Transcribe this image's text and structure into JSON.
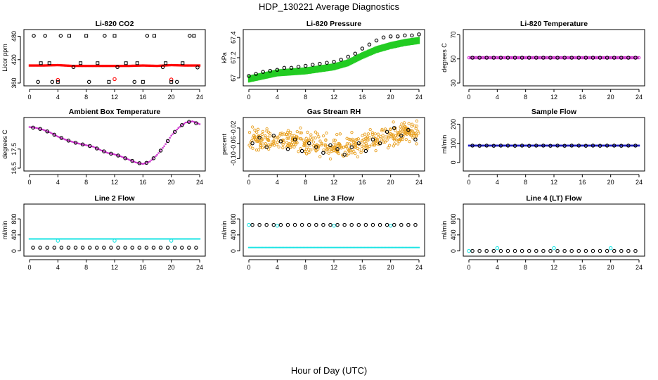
{
  "page": {
    "title": "HDP_130221  Average Diagnostics",
    "xlabel": "Hour of Day (UTC)"
  },
  "chart_data": [
    {
      "id": "co2",
      "type": "scatter",
      "title": "Li-820 CO2",
      "ylabel": "Licor ppm",
      "xlim": [
        0,
        24
      ],
      "ylim": [
        360,
        490
      ],
      "xticks": [
        0,
        4,
        8,
        12,
        16,
        20,
        24
      ],
      "yticks": [
        360,
        420,
        480
      ],
      "series": [
        {
          "kind": "band",
          "color": "#ff0000",
          "x": [
            0,
            2,
            4,
            6,
            8,
            10,
            12,
            14,
            16,
            18,
            20,
            22,
            24
          ],
          "y": [
            405,
            405,
            406,
            404,
            404,
            404,
            404,
            404,
            405,
            404,
            406,
            405,
            405
          ],
          "half_width": 3
        },
        {
          "kind": "points",
          "color": "#ff0000",
          "marker": "circle",
          "x": [
            4,
            12,
            20
          ],
          "y": [
            368,
            370,
            369
          ]
        },
        {
          "kind": "points",
          "color": "#000000",
          "marker": "circle",
          "x": [
            0.6,
            1.2,
            2.2,
            3.2,
            4.4,
            6.2,
            8.4,
            10.6,
            12.4,
            14.8,
            16.6,
            18.8,
            20.8,
            22.6,
            23.7
          ],
          "y": [
            481,
            363,
            481,
            363,
            481,
            401,
            363,
            481,
            401,
            363,
            481,
            401,
            363,
            481,
            400
          ]
        },
        {
          "kind": "points",
          "color": "#000000",
          "marker": "square",
          "x": [
            1.6,
            2.8,
            4.0,
            5.6,
            7.2,
            8.0,
            9.6,
            11.2,
            12.0,
            13.6,
            15.2,
            16.0,
            17.6,
            19.2,
            20.0,
            21.6,
            23.2
          ],
          "y": [
            411,
            411,
            363,
            481,
            411,
            481,
            411,
            363,
            481,
            411,
            411,
            363,
            481,
            411,
            363,
            411,
            481
          ]
        }
      ]
    },
    {
      "id": "pressure",
      "type": "scatter",
      "title": "Li-820 Pressure",
      "ylabel": "kPa",
      "xlim": [
        0,
        24
      ],
      "ylim": [
        66.95,
        67.45
      ],
      "xticks": [
        0,
        4,
        8,
        12,
        16,
        20,
        24
      ],
      "yticks": [
        67.0,
        67.2,
        67.4
      ],
      "series": [
        {
          "kind": "band",
          "color": "#22cc22",
          "x": [
            0,
            2,
            4,
            6,
            8,
            10,
            12,
            14,
            16,
            18,
            20,
            22,
            24
          ],
          "y": [
            66.99,
            67.02,
            67.05,
            67.06,
            67.07,
            67.09,
            67.11,
            67.15,
            67.22,
            67.28,
            67.32,
            67.35,
            67.37
          ],
          "half_width": 0.035
        },
        {
          "kind": "points",
          "color": "#000000",
          "marker": "circle",
          "x": [
            0,
            1,
            2,
            3,
            4,
            5,
            6,
            7,
            8,
            9,
            10,
            11,
            12,
            13,
            14,
            15,
            16,
            17,
            18,
            19,
            20,
            21,
            22,
            23,
            24
          ],
          "y": [
            67.02,
            67.04,
            67.06,
            67.07,
            67.08,
            67.1,
            67.1,
            67.11,
            67.12,
            67.13,
            67.14,
            67.15,
            67.16,
            67.18,
            67.21,
            67.24,
            67.29,
            67.33,
            67.37,
            67.4,
            67.41,
            67.41,
            67.42,
            67.42,
            67.43
          ]
        }
      ]
    },
    {
      "id": "licortemp",
      "type": "scatter",
      "title": "Li-820 Temperature",
      "ylabel": "degrees C",
      "xlim": [
        0,
        24
      ],
      "ylim": [
        30,
        72
      ],
      "xticks": [
        0,
        4,
        8,
        12,
        16,
        20,
        24
      ],
      "yticks": [
        30,
        50,
        70
      ],
      "series": [
        {
          "kind": "line",
          "color": "#cc33cc",
          "x": [
            0,
            24
          ],
          "y": [
            51,
            51
          ]
        },
        {
          "kind": "points",
          "color": "#000000",
          "marker": "circle",
          "x": [
            0.5,
            1.5,
            2.5,
            3.5,
            4.5,
            5.5,
            6.5,
            7.5,
            8.5,
            9.5,
            10.5,
            11.5,
            12.5,
            13.5,
            14.5,
            15.5,
            16.5,
            17.5,
            18.5,
            19.5,
            20.5,
            21.5,
            22.5,
            23.5
          ],
          "y": [
            51,
            51,
            51,
            51,
            51,
            51,
            51,
            51,
            51,
            51,
            51,
            51,
            51,
            51,
            51,
            51,
            51,
            51,
            51,
            51,
            51,
            51,
            51,
            51
          ]
        }
      ]
    },
    {
      "id": "boxtemp",
      "type": "scatter",
      "title": "Ambient Box Temperature",
      "ylabel": "degrees C",
      "xlim": [
        0,
        24
      ],
      "ylim": [
        16.5,
        19.0
      ],
      "xticks": [
        0,
        4,
        8,
        12,
        16,
        20,
        24
      ],
      "yticks": [
        16.5,
        17.5
      ],
      "series": [
        {
          "kind": "band",
          "color": "#cc33cc",
          "x": [
            0,
            1,
            2,
            3,
            4,
            5,
            6,
            7,
            8,
            9,
            10,
            11,
            12,
            13,
            14,
            15,
            16,
            17,
            18,
            19,
            20,
            21,
            22,
            23,
            24
          ],
          "y": [
            18.65,
            18.6,
            18.5,
            18.35,
            18.15,
            18.0,
            17.88,
            17.78,
            17.7,
            17.62,
            17.45,
            17.3,
            17.22,
            17.1,
            16.95,
            16.8,
            16.72,
            16.85,
            17.2,
            17.65,
            18.2,
            18.6,
            18.88,
            18.95,
            18.8
          ],
          "half_width": 0.04
        },
        {
          "kind": "points",
          "color": "#000000",
          "marker": "circle",
          "x": [
            0.5,
            1.5,
            2.5,
            3.5,
            4.5,
            5.5,
            6.5,
            7.5,
            8.5,
            9.5,
            10.5,
            11.5,
            12.5,
            13.5,
            14.5,
            15.5,
            16.5,
            17.5,
            18.5,
            19.5,
            20.5,
            21.5,
            22.5,
            23.5
          ],
          "y": [
            18.62,
            18.55,
            18.42,
            18.25,
            18.08,
            17.94,
            17.83,
            17.74,
            17.66,
            17.53,
            17.38,
            17.26,
            17.16,
            17.02,
            16.88,
            16.76,
            16.78,
            17.02,
            17.42,
            17.92,
            18.4,
            18.75,
            18.92,
            18.85
          ]
        }
      ]
    },
    {
      "id": "rh",
      "type": "scatter",
      "title": "Gas Stream RH",
      "ylabel": "percent",
      "xlim": [
        0,
        24
      ],
      "ylim": [
        -0.125,
        0.0
      ],
      "xticks": [
        0,
        4,
        8,
        12,
        16,
        20,
        24
      ],
      "yticks": [
        -0.1,
        -0.06,
        -0.02
      ],
      "yticklabels": [
        "-0.10",
        "-0.06",
        "-0.02"
      ],
      "series": [
        {
          "kind": "noise",
          "color": "#e8a020",
          "spread": 0.035,
          "x": [
            0,
            2,
            4,
            6,
            8,
            10,
            12,
            14,
            16,
            18,
            20,
            22,
            24
          ],
          "y": [
            -0.055,
            -0.05,
            -0.048,
            -0.05,
            -0.058,
            -0.065,
            -0.068,
            -0.066,
            -0.06,
            -0.052,
            -0.04,
            -0.03,
            -0.035
          ]
        },
        {
          "kind": "points",
          "color": "#000000",
          "marker": "circle",
          "x": [
            0.5,
            1.5,
            2.5,
            3.5,
            4.5,
            5.5,
            6.5,
            7.5,
            8.5,
            9.5,
            10.5,
            11.5,
            12.5,
            13.5,
            14.5,
            15.5,
            16.5,
            17.5,
            18.5,
            19.5,
            20.5,
            21.5,
            22.5,
            23.5
          ],
          "y": [
            -0.06,
            -0.045,
            -0.07,
            -0.04,
            -0.055,
            -0.075,
            -0.05,
            -0.08,
            -0.06,
            -0.07,
            -0.085,
            -0.065,
            -0.075,
            -0.09,
            -0.07,
            -0.06,
            -0.08,
            -0.05,
            -0.06,
            -0.03,
            -0.02,
            -0.04,
            -0.025,
            -0.05
          ]
        }
      ]
    },
    {
      "id": "sampleflow",
      "type": "scatter",
      "title": "Sample Flow",
      "ylabel": "ml/min",
      "xlim": [
        0,
        24
      ],
      "ylim": [
        -30,
        220
      ],
      "xticks": [
        0,
        4,
        8,
        12,
        16,
        20,
        24
      ],
      "yticks": [
        0,
        100,
        200
      ],
      "series": [
        {
          "kind": "band",
          "color": "#1f1fbf",
          "x": [
            0,
            24
          ],
          "y": [
            88,
            88
          ],
          "half_width": 5
        },
        {
          "kind": "points",
          "color": "#000000",
          "marker": "circle",
          "x": [
            0.5,
            1.5,
            2.5,
            3.5,
            4.5,
            5.5,
            6.5,
            7.5,
            8.5,
            9.5,
            10.5,
            11.5,
            12.5,
            13.5,
            14.5,
            15.5,
            16.5,
            17.5,
            18.5,
            19.5,
            20.5,
            21.5,
            22.5,
            23.5
          ],
          "y": [
            88,
            87,
            88,
            87,
            88,
            88,
            87,
            88,
            87,
            88,
            88,
            87,
            88,
            87,
            88,
            88,
            87,
            88,
            87,
            88,
            88,
            87,
            88,
            88
          ]
        }
      ]
    },
    {
      "id": "line2",
      "type": "scatter",
      "title": "Line 2 Flow",
      "ylabel": "ml/min",
      "xlim": [
        0,
        24
      ],
      "ylim": [
        -60,
        1100
      ],
      "xticks": [
        0,
        4,
        8,
        12,
        16,
        20,
        24
      ],
      "yticks": [
        0,
        400,
        800
      ],
      "series": [
        {
          "kind": "band",
          "color": "#22e5e5",
          "x": [
            0,
            24
          ],
          "y": [
            300,
            300
          ],
          "half_width": 18
        },
        {
          "kind": "points",
          "color": "#22e5e5",
          "marker": "circle",
          "x": [
            4,
            12,
            20
          ],
          "y": [
            255,
            255,
            255
          ]
        },
        {
          "kind": "points",
          "color": "#000000",
          "marker": "circle",
          "x": [
            0.5,
            1.5,
            2.5,
            3.5,
            4.5,
            5.5,
            6.5,
            7.5,
            8.5,
            9.5,
            10.5,
            11.5,
            12.5,
            13.5,
            14.5,
            15.5,
            16.5,
            17.5,
            18.5,
            19.5,
            20.5,
            21.5,
            22.5,
            23.5
          ],
          "y": [
            80,
            80,
            80,
            80,
            80,
            80,
            80,
            80,
            80,
            80,
            80,
            80,
            80,
            80,
            80,
            80,
            80,
            80,
            80,
            80,
            80,
            80,
            80,
            80
          ]
        }
      ]
    },
    {
      "id": "line3",
      "type": "scatter",
      "title": "Line 3 Flow",
      "ylabel": "ml/min",
      "xlim": [
        0,
        24
      ],
      "ylim": [
        -60,
        1100
      ],
      "xticks": [
        0,
        4,
        8,
        12,
        16,
        20,
        24
      ],
      "yticks": [
        0,
        400,
        800
      ],
      "series": [
        {
          "kind": "band",
          "color": "#22e5e5",
          "x": [
            0,
            24
          ],
          "y": [
            85,
            85
          ],
          "half_width": 18
        },
        {
          "kind": "points",
          "color": "#22e5e5",
          "marker": "circle",
          "x": [
            0,
            4,
            12,
            20
          ],
          "y": [
            650,
            630,
            630,
            630
          ]
        },
        {
          "kind": "points",
          "color": "#000000",
          "marker": "circle",
          "x": [
            0.5,
            1.5,
            2.5,
            3.5,
            4.5,
            5.5,
            6.5,
            7.5,
            8.5,
            9.5,
            10.5,
            11.5,
            12.5,
            13.5,
            14.5,
            15.5,
            16.5,
            17.5,
            18.5,
            19.5,
            20.5,
            21.5,
            22.5,
            23.5
          ],
          "y": [
            650,
            650,
            650,
            650,
            650,
            650,
            650,
            650,
            650,
            650,
            650,
            650,
            650,
            650,
            650,
            650,
            650,
            650,
            650,
            650,
            650,
            650,
            650,
            650
          ]
        }
      ]
    },
    {
      "id": "line4",
      "type": "scatter",
      "title": "Line 4 (LT) Flow",
      "ylabel": "ml/min",
      "xlim": [
        0,
        24
      ],
      "ylim": [
        -60,
        1100
      ],
      "xticks": [
        0,
        4,
        8,
        12,
        16,
        20,
        24
      ],
      "yticks": [
        0,
        400,
        800
      ],
      "series": [
        {
          "kind": "points",
          "color": "#22e5e5",
          "marker": "circle",
          "x": [
            0,
            4,
            12,
            20
          ],
          "y": [
            0,
            70,
            70,
            70
          ]
        },
        {
          "kind": "points",
          "color": "#000000",
          "marker": "circle",
          "x": [
            0.5,
            1.5,
            2.5,
            3.5,
            4.5,
            5.5,
            6.5,
            7.5,
            8.5,
            9.5,
            10.5,
            11.5,
            12.5,
            13.5,
            14.5,
            15.5,
            16.5,
            17.5,
            18.5,
            19.5,
            20.5,
            21.5,
            22.5,
            23.5
          ],
          "y": [
            0,
            0,
            0,
            0,
            0,
            0,
            0,
            0,
            0,
            0,
            0,
            0,
            0,
            0,
            0,
            0,
            0,
            0,
            0,
            0,
            0,
            0,
            0,
            0
          ]
        }
      ]
    }
  ]
}
